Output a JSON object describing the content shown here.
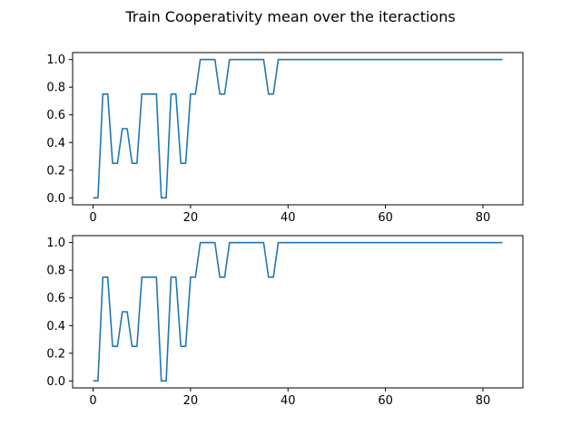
{
  "figure": {
    "title": "Train Cooperativity mean over the iteractions"
  },
  "chart_data": [
    {
      "type": "line",
      "title": "",
      "xlabel": "",
      "ylabel": "",
      "xlim": [
        -4.2,
        88.2
      ],
      "ylim": [
        -0.05,
        1.05
      ],
      "xticks": [
        0,
        20,
        40,
        60,
        80
      ],
      "yticks": [
        0.0,
        0.2,
        0.4,
        0.6,
        0.8,
        1.0
      ],
      "xtick_labels": [
        "0",
        "20",
        "40",
        "60",
        "80"
      ],
      "ytick_labels": [
        "0.0",
        "0.2",
        "0.4",
        "0.6",
        "0.8",
        "1.0"
      ],
      "grid": false,
      "color": "#1f77b4",
      "series": [
        {
          "values": [
            0,
            0,
            0.75,
            0.75,
            0.25,
            0.25,
            0.5,
            0.5,
            0.25,
            0.25,
            0.75,
            0.75,
            0.75,
            0.75,
            0,
            0,
            0.75,
            0.75,
            0.25,
            0.25,
            0.75,
            0.75,
            1,
            1,
            1,
            1,
            0.75,
            0.75,
            1,
            1,
            1,
            1,
            1,
            1,
            1,
            1,
            0.75,
            0.75,
            1,
            1,
            1,
            1,
            1,
            1,
            1,
            1,
            1,
            1,
            1,
            1,
            1,
            1,
            1,
            1,
            1,
            1,
            1,
            1,
            1,
            1,
            1,
            1,
            1,
            1,
            1,
            1,
            1,
            1,
            1,
            1,
            1,
            1,
            1,
            1,
            1,
            1,
            1,
            1,
            1,
            1,
            1,
            1,
            1,
            1,
            1
          ]
        }
      ]
    },
    {
      "type": "line",
      "title": "",
      "xlabel": "",
      "ylabel": "",
      "xlim": [
        -4.2,
        88.2
      ],
      "ylim": [
        -0.05,
        1.05
      ],
      "xticks": [
        0,
        20,
        40,
        60,
        80
      ],
      "yticks": [
        0.0,
        0.2,
        0.4,
        0.6,
        0.8,
        1.0
      ],
      "xtick_labels": [
        "0",
        "20",
        "40",
        "60",
        "80"
      ],
      "ytick_labels": [
        "0.0",
        "0.2",
        "0.4",
        "0.6",
        "0.8",
        "1.0"
      ],
      "grid": false,
      "color": "#1f77b4",
      "series": [
        {
          "values": [
            0,
            0,
            0.75,
            0.75,
            0.25,
            0.25,
            0.5,
            0.5,
            0.25,
            0.25,
            0.75,
            0.75,
            0.75,
            0.75,
            0,
            0,
            0.75,
            0.75,
            0.25,
            0.25,
            0.75,
            0.75,
            1,
            1,
            1,
            1,
            0.75,
            0.75,
            1,
            1,
            1,
            1,
            1,
            1,
            1,
            1,
            0.75,
            0.75,
            1,
            1,
            1,
            1,
            1,
            1,
            1,
            1,
            1,
            1,
            1,
            1,
            1,
            1,
            1,
            1,
            1,
            1,
            1,
            1,
            1,
            1,
            1,
            1,
            1,
            1,
            1,
            1,
            1,
            1,
            1,
            1,
            1,
            1,
            1,
            1,
            1,
            1,
            1,
            1,
            1,
            1,
            1,
            1,
            1,
            1,
            1
          ]
        }
      ]
    }
  ]
}
